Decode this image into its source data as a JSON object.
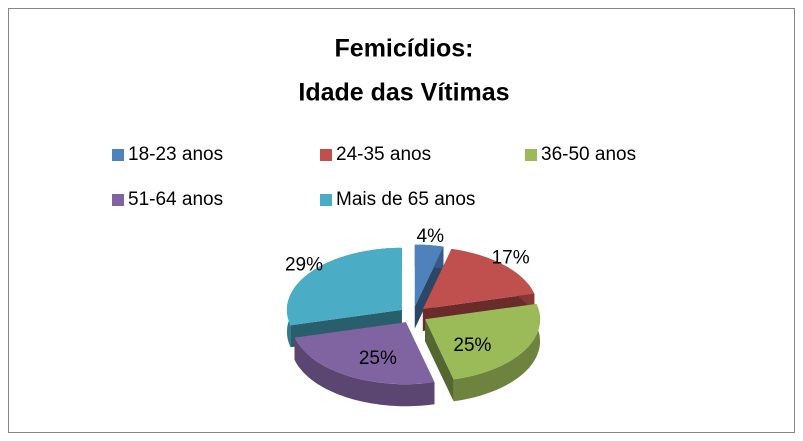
{
  "chart_data": {
    "type": "pie3d",
    "title": [
      "Femicídios:",
      "Idade das Vítimas"
    ],
    "categories": [
      "18-23 anos",
      "24-35 anos",
      "36-50 anos",
      "51-64 anos",
      "Mais de 65 anos"
    ],
    "values": [
      4,
      17,
      25,
      25,
      29
    ],
    "value_labels": [
      "4%",
      "17%",
      "25%",
      "25%",
      "29%"
    ],
    "colors": [
      "#4f81bd",
      "#c0504d",
      "#9bbb59",
      "#8064a2",
      "#4bacc6"
    ],
    "legend": "top"
  }
}
